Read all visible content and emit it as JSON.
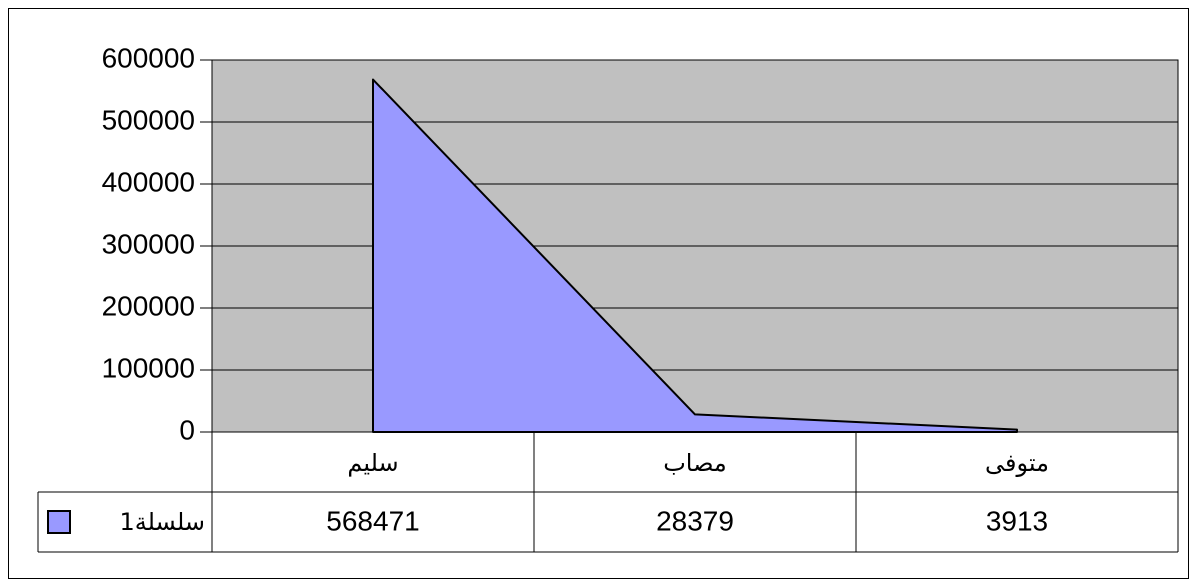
{
  "chart_data": {
    "type": "area",
    "categories": [
      "سليم",
      "مصاب",
      "متوفى"
    ],
    "series": [
      {
        "name": "سلسلة1",
        "color": "#9999ff",
        "values": [
          568471,
          28379,
          3913
        ]
      }
    ],
    "ylim": [
      0,
      600000
    ],
    "yticks": [
      0,
      100000,
      200000,
      300000,
      400000,
      500000,
      600000
    ],
    "grid": true,
    "data_table": true
  }
}
